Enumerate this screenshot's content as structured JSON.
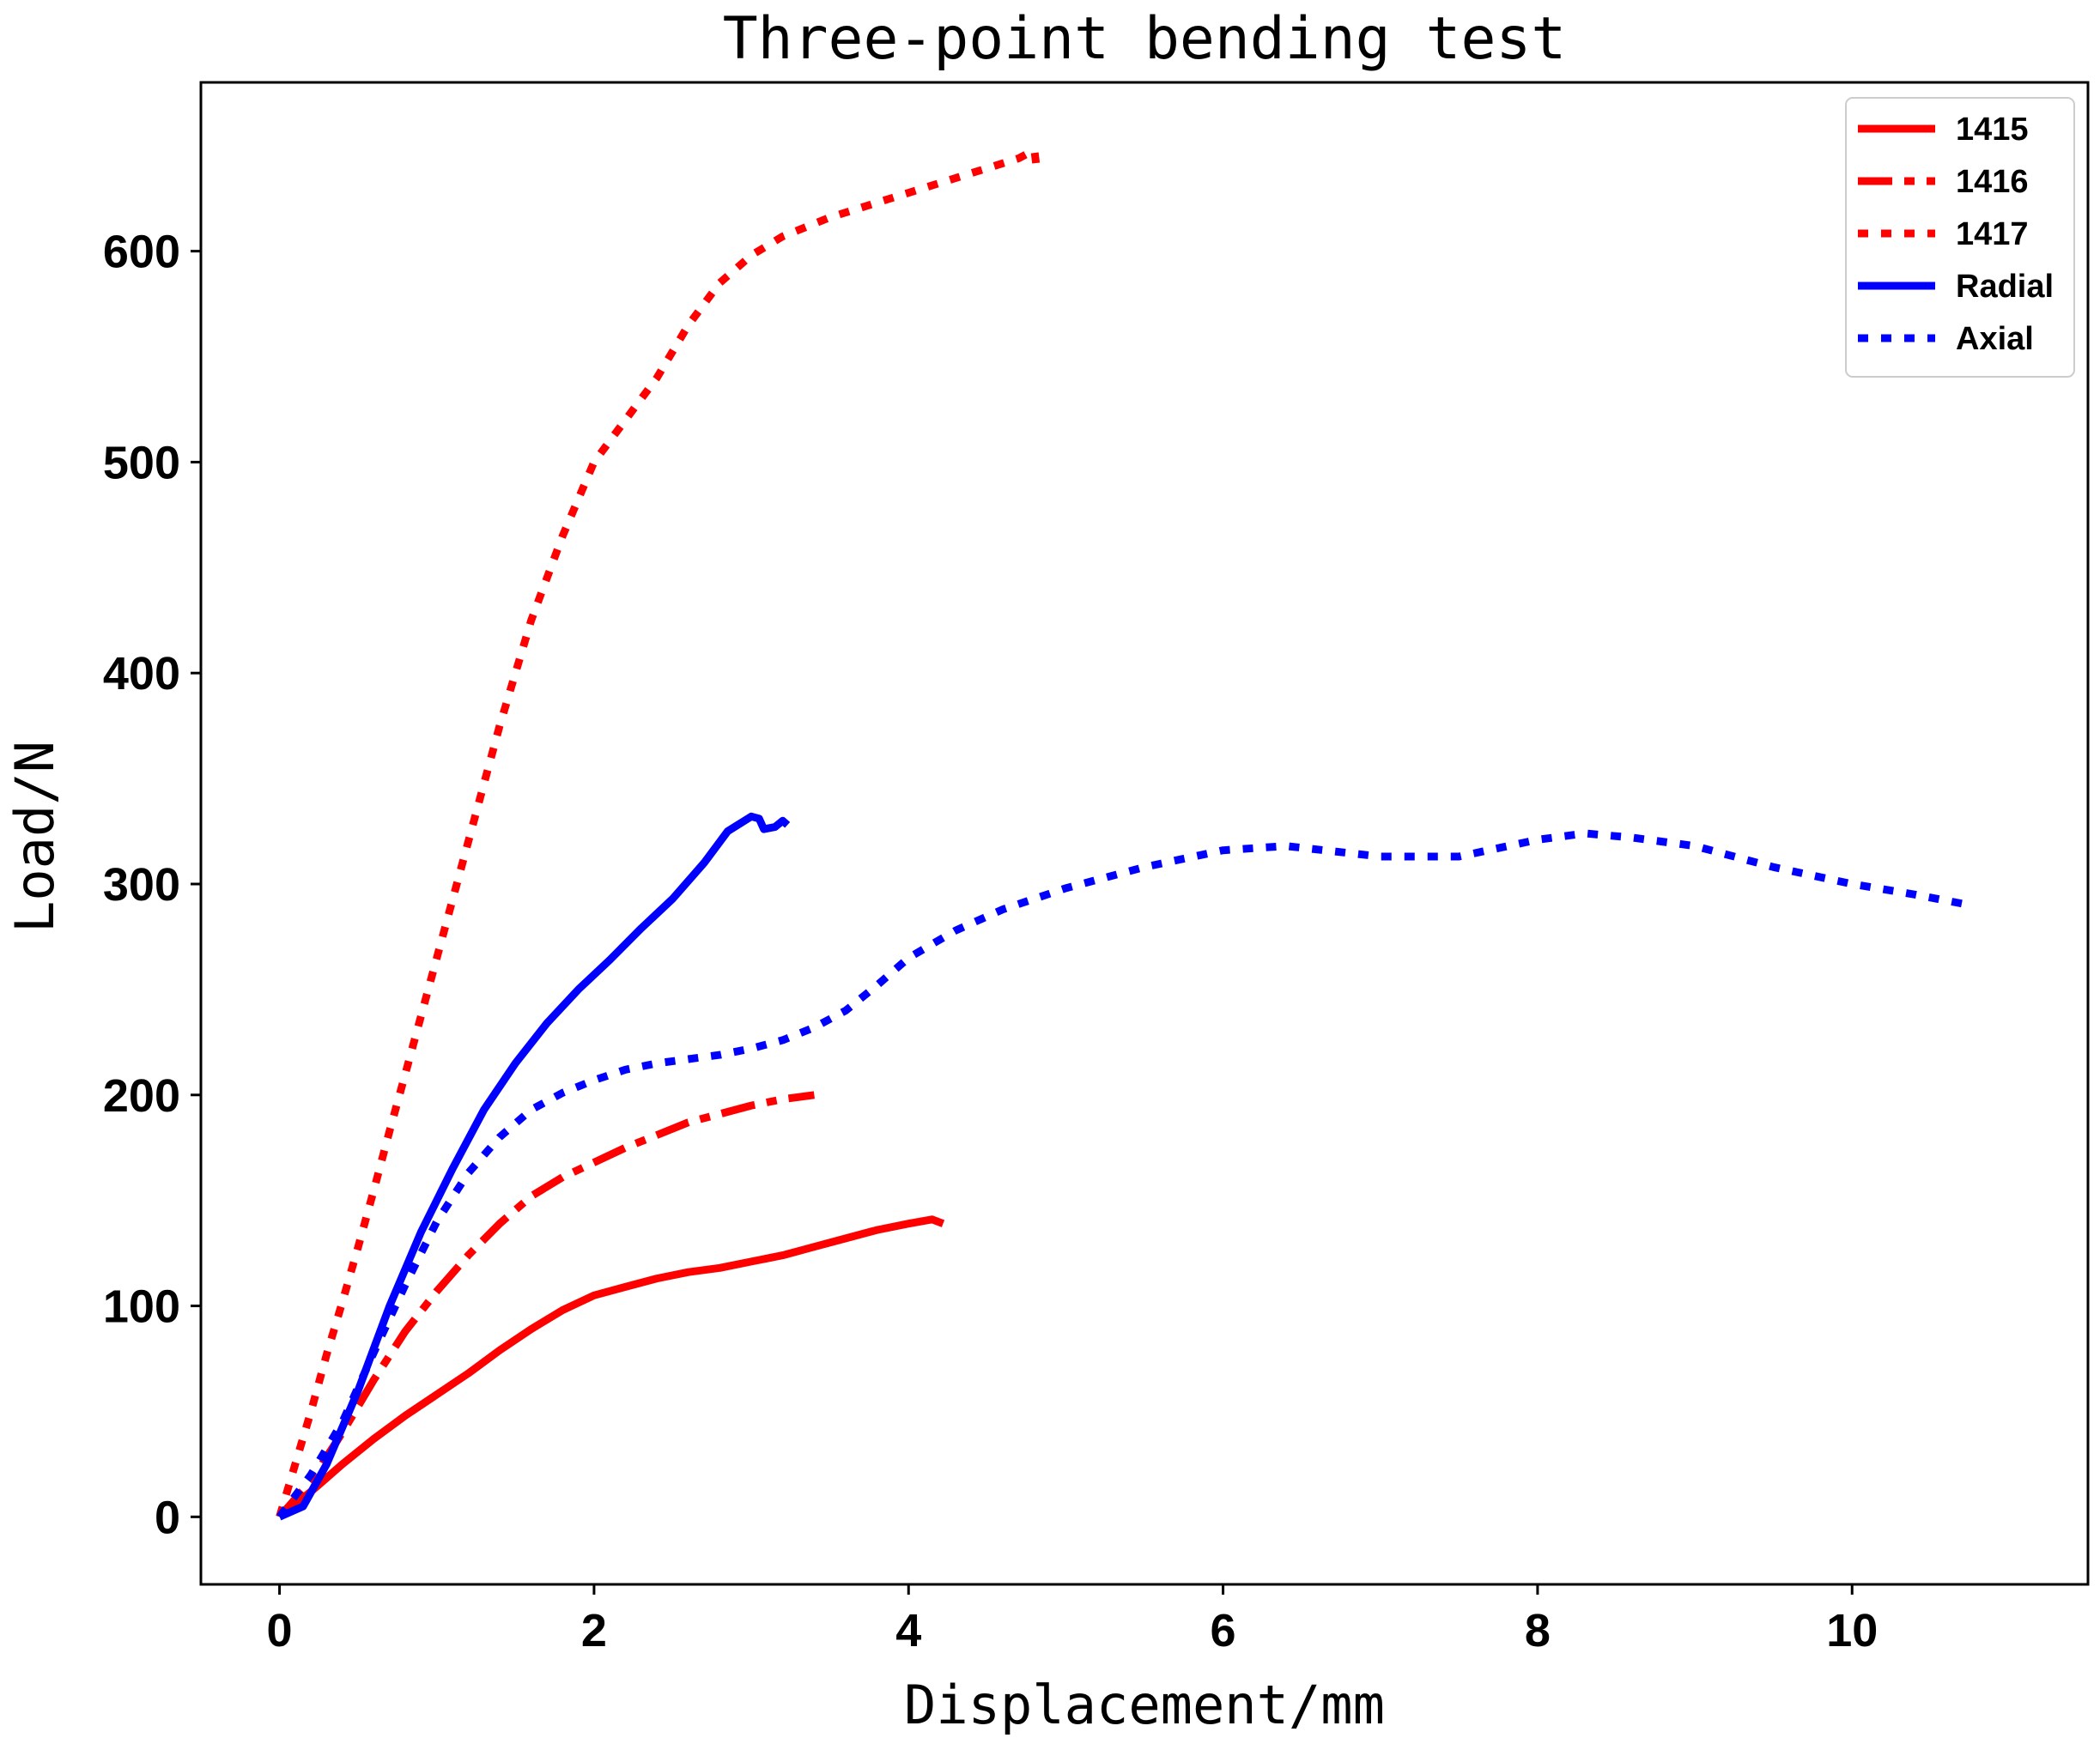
{
  "chart_data": {
    "type": "line",
    "title": "Three-point bending test",
    "xlabel": "Displacement/mm",
    "ylabel": "Load/N",
    "xlim": [
      -0.5,
      11.5
    ],
    "ylim": [
      -32,
      680
    ],
    "xticks": [
      0,
      2,
      4,
      6,
      8,
      10
    ],
    "xtick_labels": [
      "0",
      "2",
      "4",
      "6",
      "8",
      "10"
    ],
    "yticks": [
      0,
      100,
      200,
      300,
      400,
      500,
      600
    ],
    "ytick_labels": [
      "0",
      "100",
      "200",
      "300",
      "400",
      "500",
      "600"
    ],
    "grid": false,
    "legend_position": "top-right",
    "series": [
      {
        "name": "1415",
        "color": "#ff0000",
        "style": "solid",
        "points": [
          [
            0,
            0
          ],
          [
            0.2,
            12
          ],
          [
            0.4,
            25
          ],
          [
            0.6,
            37
          ],
          [
            0.8,
            48
          ],
          [
            1.0,
            58
          ],
          [
            1.2,
            68
          ],
          [
            1.4,
            79
          ],
          [
            1.6,
            89
          ],
          [
            1.8,
            98
          ],
          [
            2.0,
            105
          ],
          [
            2.2,
            109
          ],
          [
            2.4,
            113
          ],
          [
            2.6,
            116
          ],
          [
            2.8,
            118
          ],
          [
            3.0,
            121
          ],
          [
            3.2,
            124
          ],
          [
            3.4,
            128
          ],
          [
            3.6,
            132
          ],
          [
            3.8,
            136
          ],
          [
            4.0,
            139
          ],
          [
            4.15,
            141
          ],
          [
            4.22,
            139
          ]
        ]
      },
      {
        "name": "1416",
        "color": "#ff0000",
        "style": "dashdot",
        "points": [
          [
            0,
            0
          ],
          [
            0.2,
            17
          ],
          [
            0.4,
            40
          ],
          [
            0.6,
            65
          ],
          [
            0.8,
            88
          ],
          [
            1.0,
            107
          ],
          [
            1.2,
            124
          ],
          [
            1.4,
            139
          ],
          [
            1.6,
            152
          ],
          [
            1.8,
            161
          ],
          [
            2.0,
            168
          ],
          [
            2.2,
            175
          ],
          [
            2.4,
            181
          ],
          [
            2.6,
            187
          ],
          [
            2.8,
            191
          ],
          [
            3.0,
            195
          ],
          [
            3.2,
            198
          ],
          [
            3.4,
            200
          ]
        ]
      },
      {
        "name": "1417",
        "color": "#ff0000",
        "style": "dotted",
        "points": [
          [
            0,
            0
          ],
          [
            0.1,
            25
          ],
          [
            0.2,
            50
          ],
          [
            0.3,
            77
          ],
          [
            0.4,
            102
          ],
          [
            0.5,
            128
          ],
          [
            0.6,
            155
          ],
          [
            0.7,
            183
          ],
          [
            0.8,
            210
          ],
          [
            1.0,
            265
          ],
          [
            1.2,
            320
          ],
          [
            1.4,
            375
          ],
          [
            1.6,
            425
          ],
          [
            1.8,
            465
          ],
          [
            2.0,
            500
          ],
          [
            2.2,
            520
          ],
          [
            2.4,
            540
          ],
          [
            2.6,
            565
          ],
          [
            2.8,
            585
          ],
          [
            3.0,
            598
          ],
          [
            3.2,
            607
          ],
          [
            3.5,
            616
          ],
          [
            3.8,
            623
          ],
          [
            4.1,
            630
          ],
          [
            4.4,
            637
          ],
          [
            4.7,
            644
          ],
          [
            4.8,
            648
          ],
          [
            4.82,
            636
          ]
        ]
      },
      {
        "name": "Radial",
        "color": "#0000ff",
        "style": "solid",
        "points": [
          [
            0,
            0
          ],
          [
            0.15,
            5
          ],
          [
            0.3,
            25
          ],
          [
            0.5,
            60
          ],
          [
            0.7,
            100
          ],
          [
            0.9,
            135
          ],
          [
            1.1,
            165
          ],
          [
            1.3,
            193
          ],
          [
            1.5,
            215
          ],
          [
            1.7,
            234
          ],
          [
            1.9,
            250
          ],
          [
            2.1,
            264
          ],
          [
            2.3,
            279
          ],
          [
            2.5,
            293
          ],
          [
            2.7,
            310
          ],
          [
            2.85,
            325
          ],
          [
            3.0,
            332
          ],
          [
            3.05,
            331
          ],
          [
            3.08,
            326
          ],
          [
            3.15,
            327
          ],
          [
            3.2,
            330
          ],
          [
            3.23,
            328
          ]
        ]
      },
      {
        "name": "Axial",
        "color": "#0000ff",
        "style": "dotted",
        "points": [
          [
            0,
            0
          ],
          [
            0.2,
            20
          ],
          [
            0.4,
            45
          ],
          [
            0.6,
            78
          ],
          [
            0.8,
            110
          ],
          [
            1.0,
            140
          ],
          [
            1.2,
            163
          ],
          [
            1.4,
            180
          ],
          [
            1.6,
            193
          ],
          [
            1.8,
            201
          ],
          [
            2.0,
            207
          ],
          [
            2.2,
            212
          ],
          [
            2.4,
            215
          ],
          [
            2.6,
            217
          ],
          [
            2.8,
            219
          ],
          [
            3.0,
            222
          ],
          [
            3.2,
            226
          ],
          [
            3.4,
            232
          ],
          [
            3.6,
            240
          ],
          [
            3.8,
            252
          ],
          [
            4.0,
            265
          ],
          [
            4.3,
            278
          ],
          [
            4.6,
            288
          ],
          [
            5.0,
            298
          ],
          [
            5.5,
            308
          ],
          [
            6.0,
            316
          ],
          [
            6.4,
            318
          ],
          [
            7.0,
            313
          ],
          [
            7.5,
            313
          ],
          [
            8.0,
            321
          ],
          [
            8.3,
            324
          ],
          [
            8.6,
            322
          ],
          [
            9.0,
            318
          ],
          [
            9.5,
            308
          ],
          [
            10.0,
            300
          ],
          [
            10.4,
            295
          ],
          [
            10.75,
            290
          ]
        ]
      }
    ]
  }
}
